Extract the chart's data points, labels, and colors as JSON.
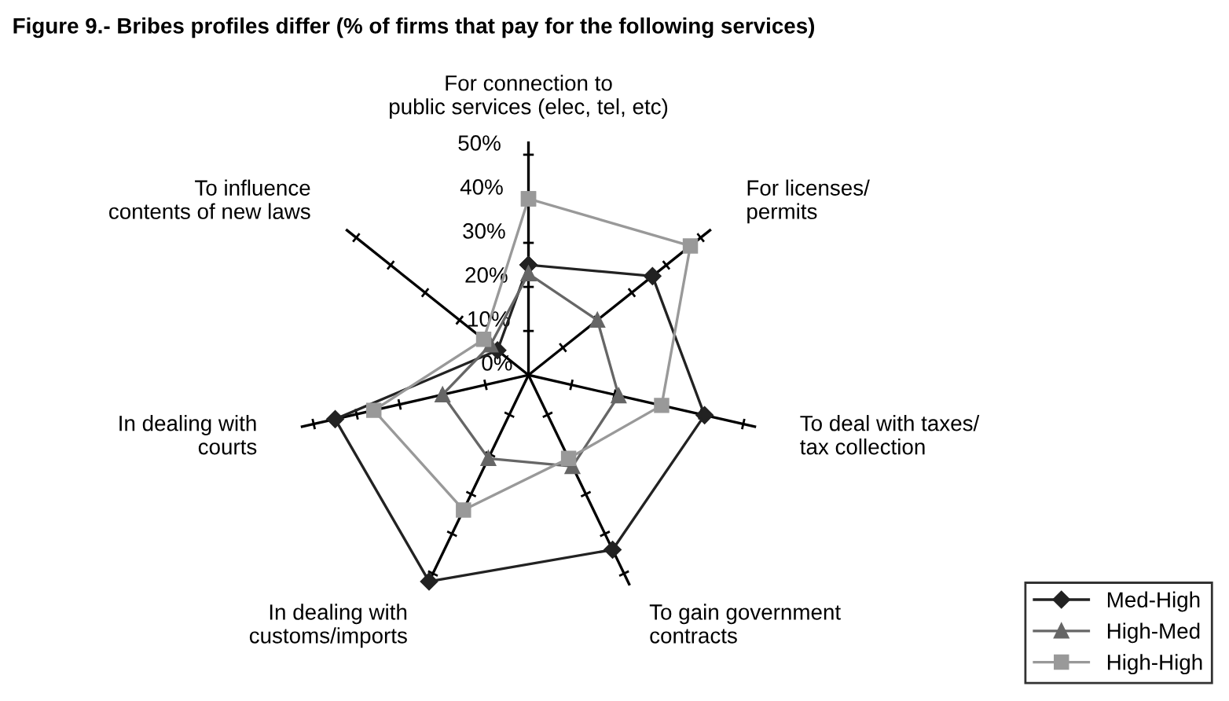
{
  "chart_data": {
    "type": "radar",
    "title": "Figure 9.- Bribes profiles differ (% of firms that pay for the following services)",
    "categories": [
      "For connection to\npublic services (elec, tel, etc)",
      "For licenses/\npermits",
      "To deal with taxes/\ntax collection",
      "To gain government\ncontracts",
      "In dealing with\ncustoms/imports",
      "In dealing with\ncourts",
      "To influence\ncontents of new laws"
    ],
    "series": [
      {
        "name": "Med-High",
        "color": "#222222",
        "marker": "diamond",
        "values": [
          25,
          36,
          41,
          44,
          52,
          45,
          9
        ]
      },
      {
        "name": "High-Med",
        "color": "#666666",
        "marker": "triangle",
        "values": [
          23,
          20,
          21,
          23,
          21,
          20,
          11
        ]
      },
      {
        "name": "High-High",
        "color": "#999999",
        "marker": "square",
        "values": [
          40,
          47,
          31,
          21,
          34,
          36,
          13
        ]
      }
    ],
    "ylim": [
      0,
      53
    ],
    "yticks": [
      {
        "value": 0,
        "label": "0%"
      },
      {
        "value": 10,
        "label": "10%"
      },
      {
        "value": 20,
        "label": "20%"
      },
      {
        "value": 30,
        "label": "30%"
      },
      {
        "value": 40,
        "label": "40%"
      },
      {
        "value": 50,
        "label": "50%"
      }
    ],
    "grid": false,
    "legend": "bottom right"
  }
}
